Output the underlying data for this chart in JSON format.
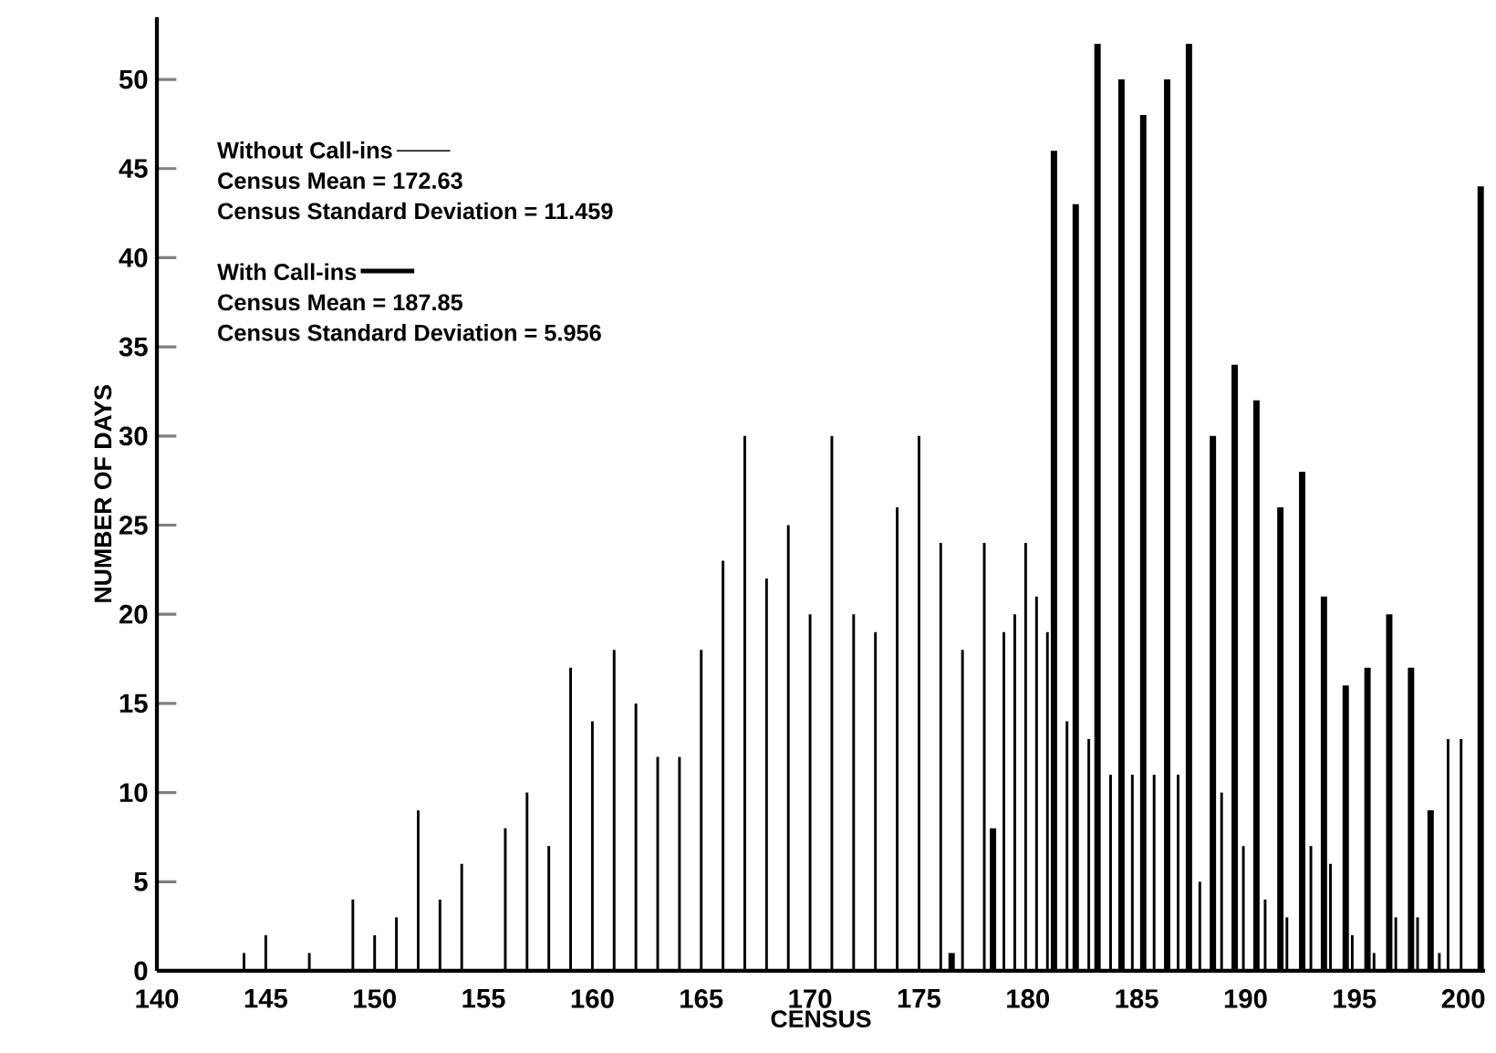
{
  "chart_data": {
    "type": "bar",
    "xlabel": "CENSUS",
    "ylabel": "NUMBER OF DAYS",
    "xlim": [
      140,
      201
    ],
    "ylim": [
      0,
      53.5
    ],
    "xticks": [
      140,
      145,
      150,
      155,
      160,
      165,
      170,
      175,
      180,
      185,
      190,
      195,
      200
    ],
    "yticks": [
      0,
      5,
      10,
      15,
      20,
      25,
      30,
      35,
      40,
      45,
      50
    ],
    "legend": "top left",
    "annotations": [
      "Census Mean = 172.63",
      "Census Standard Deviation = 11.459",
      "Census Mean = 187.85",
      "Census Standard Deviation = 5.956"
    ],
    "series": [
      {
        "name": "Without Call-ins",
        "color": "#000000",
        "x": [
          144,
          145,
          147,
          149,
          150,
          151,
          152,
          153,
          154,
          156,
          157,
          158,
          159,
          160,
          161,
          162,
          163,
          164,
          165,
          166,
          167,
          168,
          169,
          170,
          171,
          172,
          173,
          174,
          175,
          176,
          177,
          178,
          178.9,
          179.4,
          179.9,
          180.4,
          180.9,
          181.8,
          182.8,
          183.8,
          184.8,
          185.8,
          186.9,
          187.9,
          188.9,
          189.9,
          190.9,
          191.9,
          193,
          193.9,
          194.9,
          195.9,
          196.9,
          197.9,
          198.9,
          199.3,
          199.9
        ],
        "values": [
          1,
          2,
          1,
          4,
          2,
          3,
          9,
          4,
          6,
          8,
          10,
          7,
          17,
          14,
          18,
          15,
          12,
          12,
          18,
          23,
          30,
          22,
          25,
          20,
          30,
          20,
          19,
          26,
          30,
          24,
          18,
          24,
          19,
          20,
          24,
          21,
          19,
          14,
          13,
          11,
          11,
          11,
          11,
          5,
          10,
          7,
          4,
          3,
          7,
          6,
          2,
          1,
          3,
          3,
          1,
          13,
          13
        ]
      },
      {
        "name": "With Call-ins",
        "color": "#000000",
        "x": [
          176.5,
          178.4,
          181.2,
          182.2,
          183.2,
          184.3,
          185.3,
          186.4,
          187.4,
          188.5,
          189.5,
          190.5,
          191.6,
          192.6,
          193.6,
          194.6,
          195.6,
          196.6,
          197.6,
          198.5,
          200.8
        ],
        "values": [
          1,
          8,
          46,
          43,
          52,
          50,
          48,
          50,
          52,
          30,
          34,
          32,
          26,
          28,
          21,
          16,
          17,
          20,
          17,
          9,
          44
        ]
      }
    ]
  }
}
